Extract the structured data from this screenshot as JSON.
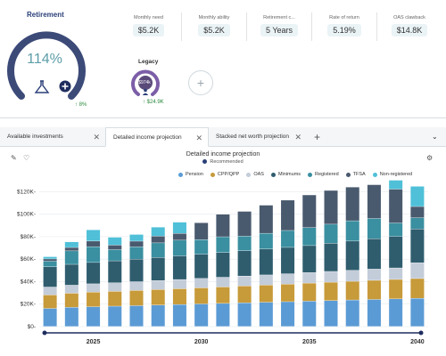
{
  "retirement": {
    "title": "Retirement",
    "percent": "114%",
    "percent_value": 1.14,
    "change": "8%"
  },
  "metrics": [
    {
      "label": "Monthly need",
      "value": "$5.2K"
    },
    {
      "label": "Monthly ability",
      "value": "$5.2K"
    },
    {
      "label": "Retirement c...",
      "value": "5 Years"
    },
    {
      "label": "Rate of return",
      "value": "5.19%"
    },
    {
      "label": "OAS clawback",
      "value": "$14.8K"
    }
  ],
  "legacy": {
    "title": "Legacy",
    "value": "$974k",
    "change": "$24.9K"
  },
  "tabs": [
    {
      "label": "Available investments",
      "active": false
    },
    {
      "label": "Detailed income projection",
      "active": true
    },
    {
      "label": "Stacked net worth projection",
      "active": false
    }
  ],
  "chart_header": {
    "title": "Detailed income projection",
    "subtitle": "Recommended"
  },
  "colors": {
    "Pension": "#5b9bd5",
    "CPP/QPP": "#c79a3a",
    "OAS": "#c3ccd9",
    "Minimums": "#2f5d6e",
    "Registered": "#3a8fa0",
    "TFSA": "#4a5a6e",
    "Non-registered": "#4fc0d8"
  },
  "chart_data": {
    "type": "bar",
    "stacked": true,
    "ylim": [
      0,
      125000
    ],
    "yticks": [
      "$0-",
      "$20K-",
      "$40K-",
      "$60K-",
      "$80K-",
      "$100K-",
      "$120K-"
    ],
    "ytick_values": [
      0,
      20000,
      40000,
      60000,
      80000,
      100000,
      120000
    ],
    "xticks": [
      "2025",
      "2030",
      "2035",
      "2040"
    ],
    "xtick_values": [
      2025,
      2030,
      2035,
      2040
    ],
    "legend": [
      "Pension",
      "CPP/QPP",
      "OAS",
      "Minimums",
      "Registered",
      "TFSA",
      "Non-registered"
    ],
    "legend_position": "top-right",
    "categories": [
      2023,
      2024,
      2025,
      2026,
      2027,
      2028,
      2029,
      2030,
      2031,
      2032,
      2033,
      2034,
      2035,
      2036,
      2037,
      2038,
      2039,
      2040
    ],
    "series": [
      {
        "name": "Pension",
        "values": [
          16000,
          17000,
          17500,
          18000,
          18500,
          19000,
          19500,
          20000,
          20500,
          21000,
          21500,
          22000,
          22500,
          23000,
          23500,
          24000,
          24500,
          25000
        ]
      },
      {
        "name": "CPP/QPP",
        "values": [
          12000,
          12500,
          13000,
          13200,
          13500,
          13800,
          14000,
          14300,
          14600,
          15000,
          15300,
          15600,
          16000,
          16300,
          16600,
          17000,
          17300,
          17600
        ]
      },
      {
        "name": "OAS",
        "values": [
          7000,
          7200,
          7400,
          7600,
          7800,
          8000,
          8200,
          8400,
          8600,
          8800,
          9000,
          9200,
          9400,
          9600,
          9800,
          10000,
          10200,
          14000
        ]
      },
      {
        "name": "Minimums",
        "values": [
          18000,
          18500,
          19000,
          19500,
          20000,
          20500,
          21000,
          21500,
          22000,
          22500,
          23000,
          23500,
          24000,
          25000,
          26000,
          27000,
          28000,
          30000
        ]
      },
      {
        "name": "Registered",
        "values": [
          5000,
          12000,
          14000,
          10000,
          11000,
          13000,
          14000,
          13000,
          14000,
          13000,
          14000,
          15000,
          16000,
          17000,
          18000,
          18000,
          12000,
          10000
        ]
      },
      {
        "name": "TFSA",
        "values": [
          2000,
          3000,
          5000,
          4000,
          5000,
          6000,
          6000,
          15000,
          20000,
          22000,
          25000,
          27000,
          29000,
          30000,
          30000,
          30000,
          30000,
          10000
        ]
      },
      {
        "name": "Non-registered",
        "values": [
          2000,
          5000,
          10000,
          7000,
          6000,
          8000,
          10000,
          0,
          0,
          0,
          0,
          0,
          0,
          0,
          0,
          0,
          8000,
          18000
        ]
      }
    ]
  }
}
